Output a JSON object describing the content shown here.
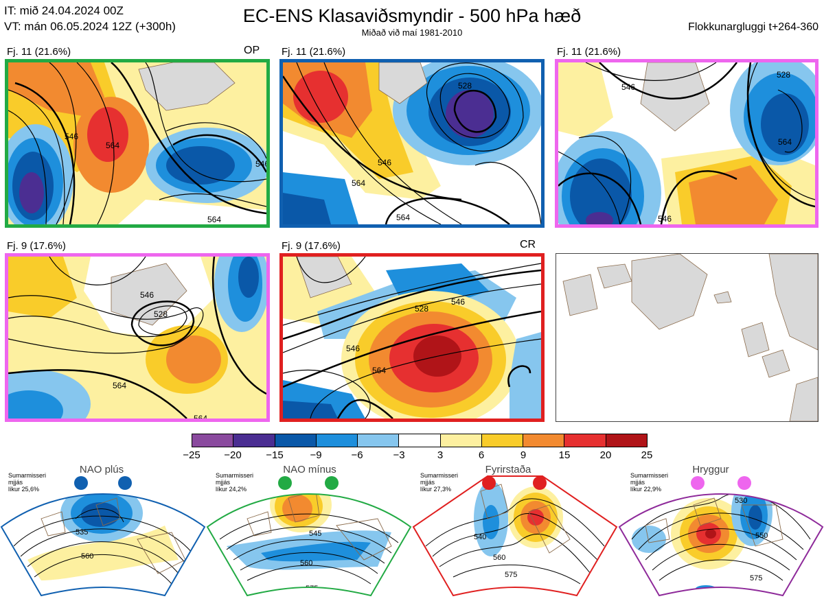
{
  "header": {
    "it_line": "IT: mið 24.04.2024 00Z",
    "vt_line": "VT: mán 06.05.2024 12Z  (+300h)",
    "title": "EC-ENS Klasaviðsmyndir - 500 hPa hæð",
    "subtitle": "Miðað við maí 1981-2010",
    "window": "Flokkunargluggi t+264-360"
  },
  "panels": [
    {
      "label": "Fj. 11 (21.6%)",
      "tag": "OP",
      "border": "#22aa44",
      "contours": [
        "546",
        "564",
        "546",
        "564"
      ]
    },
    {
      "label": "Fj. 11 (21.6%)",
      "tag": "",
      "border": "#1060b0",
      "contours": [
        "528",
        "546",
        "564",
        "564"
      ]
    },
    {
      "label": "Fj. 11 (21.6%)",
      "tag": "",
      "border": "#ee66ee",
      "contours": [
        "528",
        "546",
        "564",
        "546"
      ]
    },
    {
      "label": "Fj. 9 (17.6%)",
      "tag": "",
      "border": "#ee66ee",
      "contours": [
        "528",
        "546",
        "564",
        "564"
      ]
    },
    {
      "label": "Fj. 9 (17.6%)",
      "tag": "CR",
      "border": "#e02020",
      "contours": [
        "528",
        "546",
        "564",
        "546"
      ]
    }
  ],
  "colorbar": {
    "colors": [
      "#8a4a9e",
      "#4b2e92",
      "#0a58a8",
      "#1e8fdc",
      "#86c6ee",
      "#ffffff",
      "#fdf0a0",
      "#f9cc2a",
      "#f28a30",
      "#e63030",
      "#b01418"
    ],
    "ticks": [
      "−25",
      "−20",
      "−15",
      "−9",
      "−6",
      "−3",
      "3",
      "6",
      "9",
      "15",
      "20",
      "25"
    ]
  },
  "regimes": [
    {
      "name": "NAO plús",
      "note1": "Sumarmisseri",
      "note2": "mjjás",
      "note3": "líkur 25,6%",
      "color": "#1060b0",
      "contours": [
        "535",
        "560"
      ]
    },
    {
      "name": "NAO mínus",
      "note1": "Sumarmisseri",
      "note2": "mjjás",
      "note3": "líkur 24,2%",
      "color": "#22aa44",
      "contours": [
        "545",
        "560",
        "575"
      ]
    },
    {
      "name": "Fyrirstaða",
      "note1": "Sumarmisseri",
      "note2": "mjjás",
      "note3": "líkur 27,3%",
      "color": "#e02020",
      "contours": [
        "540",
        "560",
        "575"
      ]
    },
    {
      "name": "Hryggur",
      "note1": "Sumarmisseri",
      "note2": "mjjás",
      "note3": "líkur 22,9%",
      "color": "#8e2a9a",
      "contours": [
        "530",
        "550",
        "575"
      ]
    }
  ]
}
